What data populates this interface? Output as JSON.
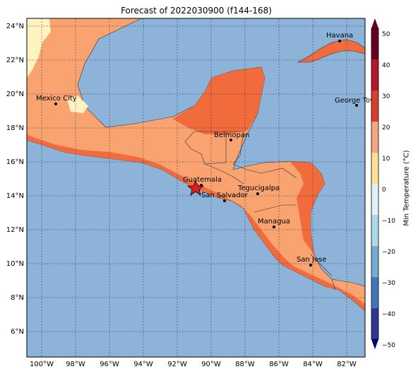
{
  "title": "Forecast of 2022030900 (f144-168)",
  "colorbar": {
    "label": "Min Temperature (°C)",
    "ticks": [
      "50",
      "40",
      "30",
      "20",
      "10",
      "0",
      "−10",
      "−20",
      "−30",
      "−40",
      "−50"
    ],
    "colors": [
      "#67001f",
      "#b2182b",
      "#d6402b",
      "#f4a582",
      "#fee090",
      "#ffffbf",
      "#e0f3f8",
      "#abd9e9",
      "#74add1",
      "#4575b4",
      "#313695"
    ]
  },
  "axes": {
    "lat_labels": [
      "24°N",
      "22°N",
      "20°N",
      "18°N",
      "16°N",
      "14°N",
      "12°N",
      "10°N",
      "8°N",
      "6°N"
    ],
    "lon_labels": [
      "100°W",
      "98°W",
      "96°W",
      "94°W",
      "92°W",
      "90°W",
      "88°W",
      "86°W",
      "84°W",
      "82°W"
    ]
  },
  "cities": [
    {
      "name": "Havana"
    },
    {
      "name": "Mexico City"
    },
    {
      "name": "George Tov"
    },
    {
      "name": "Belmopan"
    },
    {
      "name": "Guatemala"
    },
    {
      "name": "Tegucigalpa"
    },
    {
      "name": "San Salvador"
    },
    {
      "name": "Managua"
    },
    {
      "name": "San Jose"
    }
  ],
  "colors": {
    "ocean": "#8eb3d8",
    "warm": "#f9a370",
    "hot": "#f26b3c",
    "cool": "#fff3c2",
    "star": "#e02020"
  }
}
